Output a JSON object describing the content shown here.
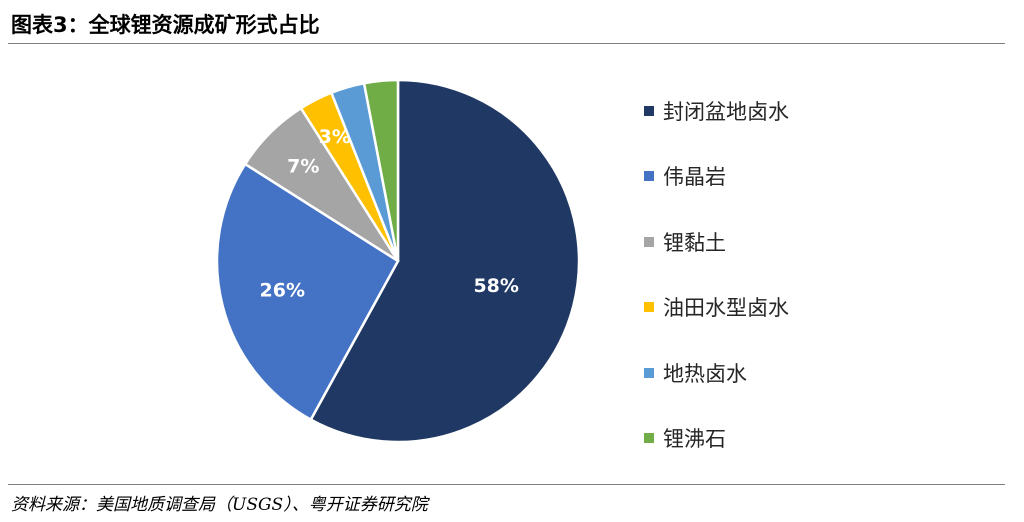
{
  "header": {
    "title": "图表3：全球锂资源成矿形式占比"
  },
  "chart_data": {
    "type": "pie",
    "title": "",
    "slices": [
      {
        "label": "封闭盆地卤水",
        "value": 58,
        "display": "58%",
        "color": "#203864",
        "show_label": true
      },
      {
        "label": "伟晶岩",
        "value": 26,
        "display": "26%",
        "color": "#4472C4",
        "show_label": true
      },
      {
        "label": "锂黏土",
        "value": 7,
        "display": "7%",
        "color": "#A5A5A5",
        "show_label": true
      },
      {
        "label": "油田水型卤水",
        "value": 3,
        "display": "3%",
        "color": "#FFC000",
        "show_label": true
      },
      {
        "label": "地热卤水",
        "value": 3,
        "display": "",
        "color": "#5B9BD5",
        "show_label": false
      },
      {
        "label": "锂沸石",
        "value": 3,
        "display": "",
        "color": "#70AD47",
        "show_label": false
      }
    ],
    "legend_placement": "right"
  },
  "footer": {
    "source": "资料来源：美国地质调查局（USGS）、粤开证券研究院"
  }
}
